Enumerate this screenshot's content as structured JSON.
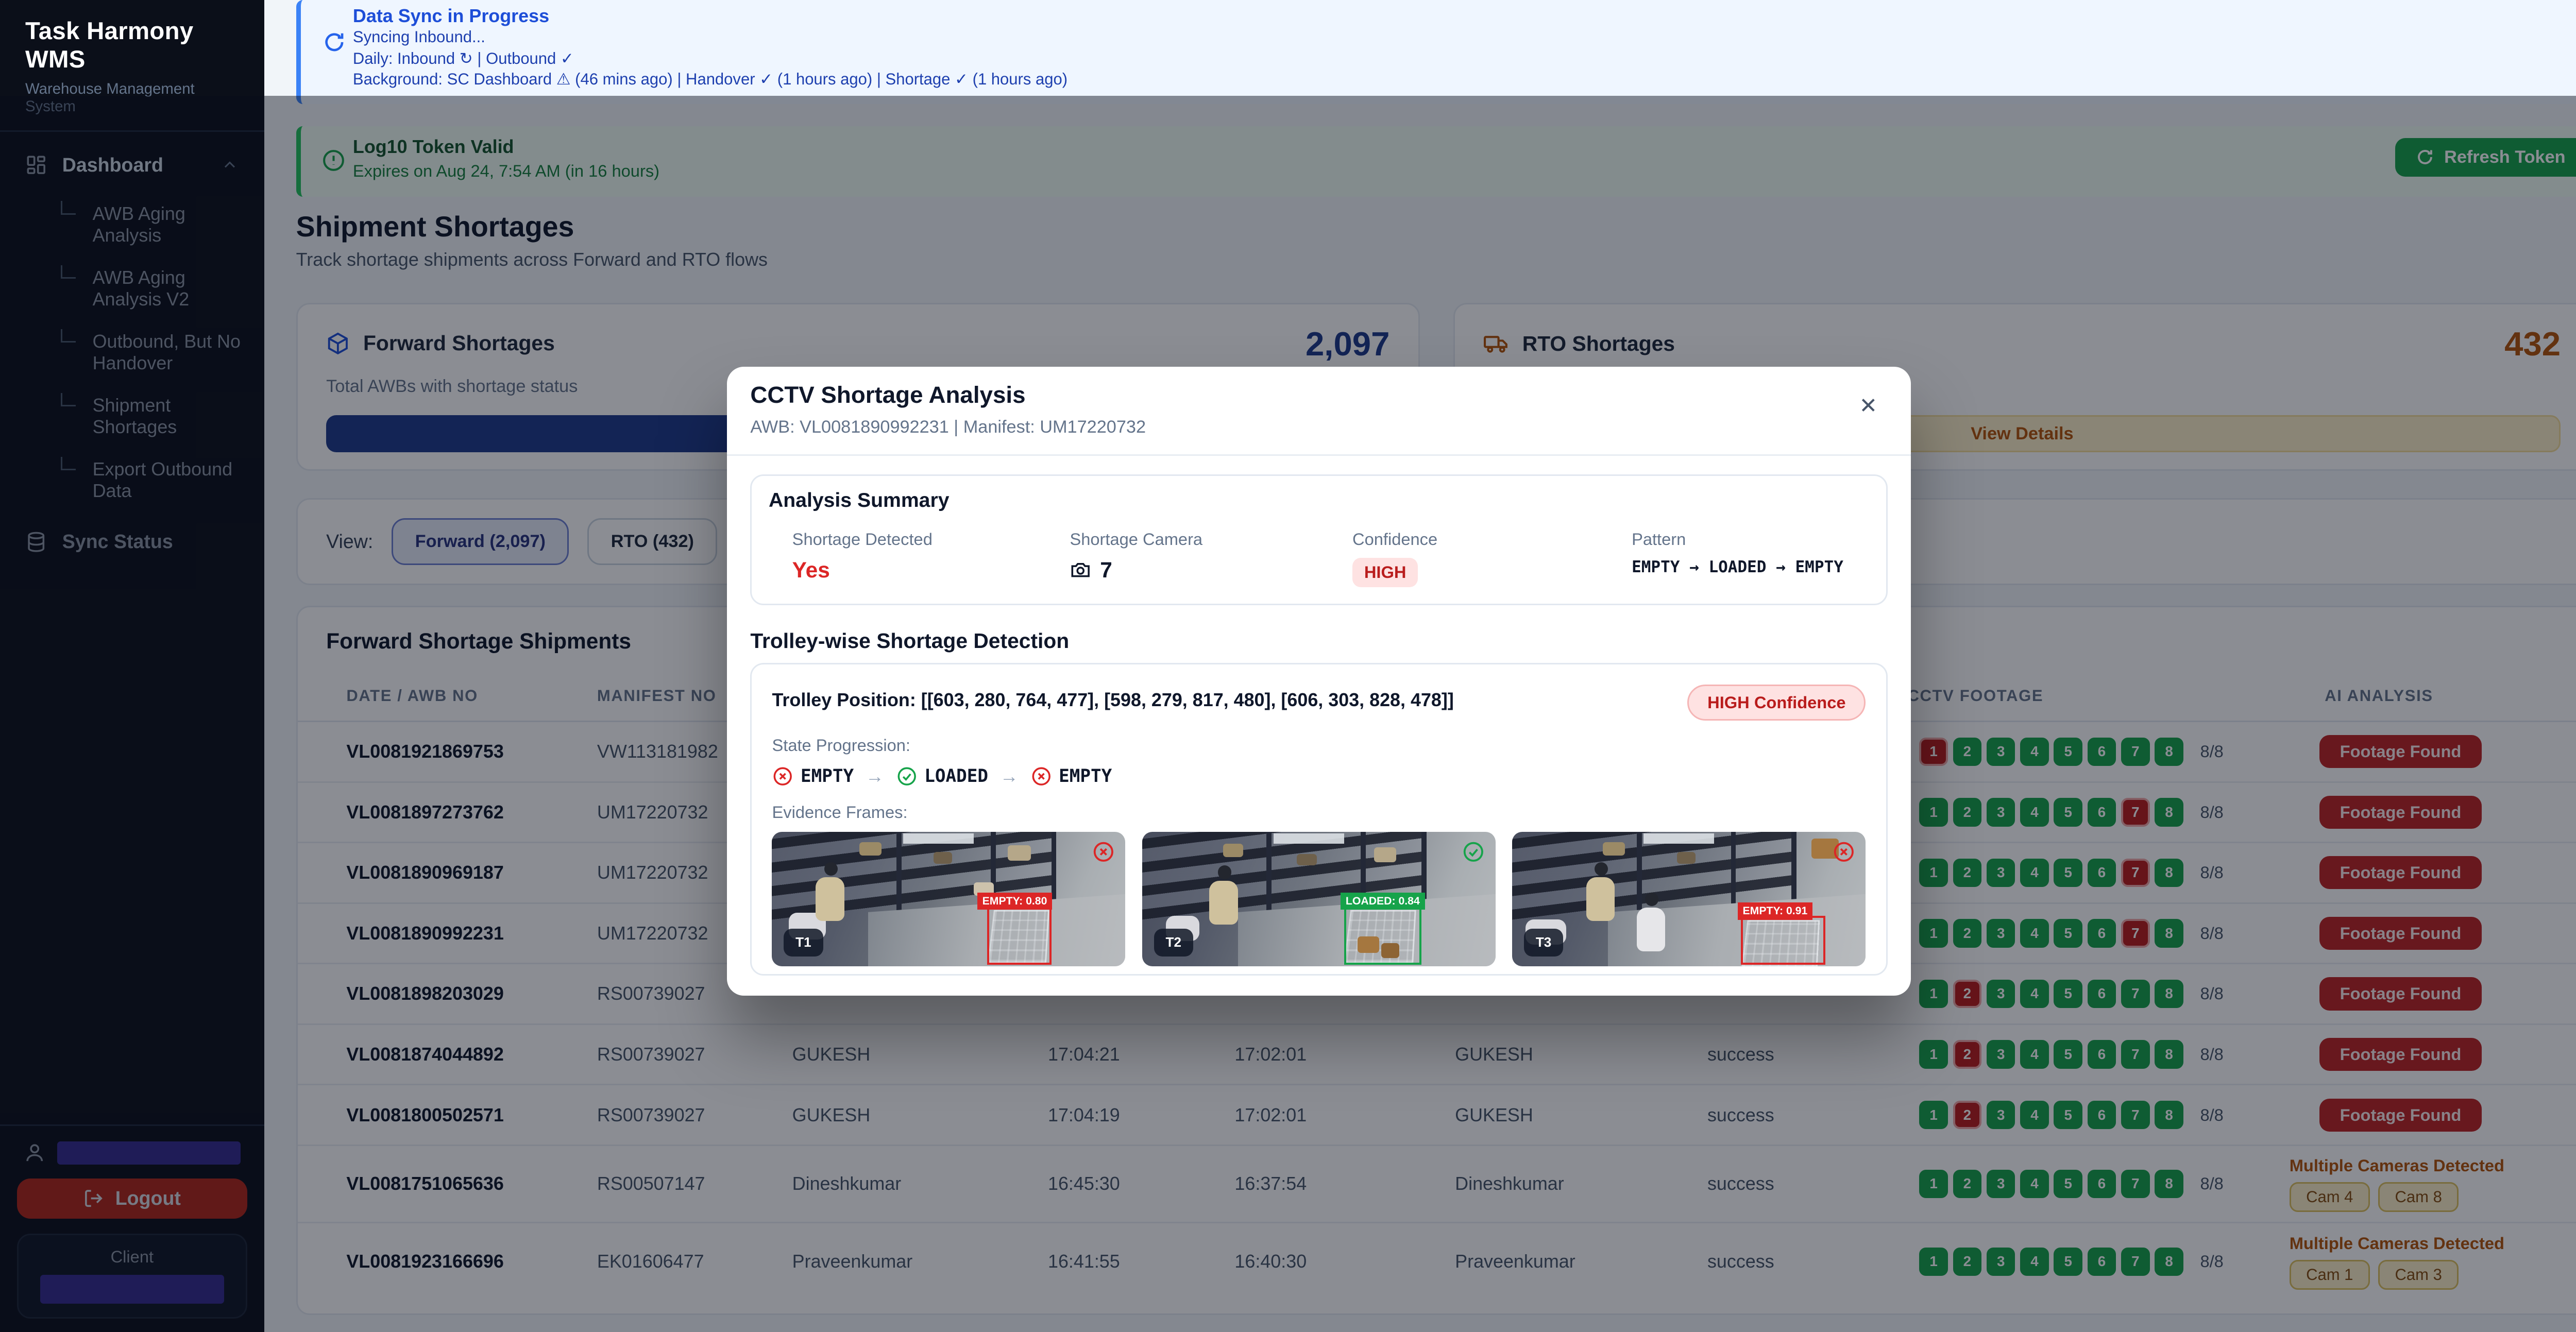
{
  "colors": {
    "accent_blue": "#1D4ED8",
    "green": "#16A34A",
    "red": "#DC2626",
    "amber": "#B45309",
    "indigo": "#1E3A8A"
  },
  "sidebar": {
    "title": "Task Harmony WMS",
    "subtitle": "Warehouse Management System",
    "dashboard_label": "Dashboard",
    "nav_items": [
      "AWB Aging Analysis",
      "AWB Aging Analysis V2",
      "Outbound, But No Handover",
      "Shipment Shortages",
      "Export Outbound Data"
    ],
    "sync_status_label": "Sync Status",
    "logout_label": "Logout",
    "client_label": "Client"
  },
  "sync_banner": {
    "title": "Data Sync in Progress",
    "line1": "Syncing Inbound...",
    "line2": "Daily: Inbound ↻ | Outbound ✓",
    "line3": "Background: SC Dashboard ⚠ (46 mins ago) | Handover ✓ (1 hours ago) | Shortage ✓ (1 hours ago)"
  },
  "token_banner": {
    "title": "Log10 Token Valid",
    "subtitle": "Expires on Aug 24, 7:54 AM (in 16 hours)",
    "button_label": "Refresh Token"
  },
  "page": {
    "title": "Shipment Shortages",
    "subtitle": "Track shortage shipments across Forward and RTO flows"
  },
  "cards": {
    "forward": {
      "label": "Forward Shortages",
      "value": "2,097",
      "subtitle": "Total AWBs with shortage status"
    },
    "rto": {
      "label": "RTO Shortages",
      "value": "432",
      "button_label": "View Details"
    }
  },
  "view_toggle": {
    "label": "View:",
    "forward": "Forward (2,097)",
    "rto": "RTO (432)"
  },
  "table": {
    "title": "Forward Shortage Shipments",
    "headers": [
      "DATE / AWB NO",
      "MANIFEST NO",
      "",
      "",
      "",
      "",
      "",
      "CCTV FOOTAGE",
      "AI ANALYSIS"
    ],
    "rows": [
      {
        "awb": "VL0081921869753",
        "manifest": "VW113181982",
        "name": "",
        "time1": "",
        "time2": "",
        "name2": "",
        "status": "",
        "red_cam": 1,
        "count": "8/8",
        "ai": {
          "type": "footage",
          "label": "Footage Found"
        },
        "tall": false
      },
      {
        "awb": "VL0081897273762",
        "manifest": "UM17220732",
        "name": "",
        "time1": "",
        "time2": "",
        "name2": "",
        "status": "",
        "red_cam": 7,
        "count": "8/8",
        "ai": {
          "type": "footage",
          "label": "Footage Found"
        },
        "tall": false
      },
      {
        "awb": "VL0081890969187",
        "manifest": "UM17220732",
        "name": "",
        "time1": "",
        "time2": "",
        "name2": "",
        "status": "",
        "red_cam": 7,
        "count": "8/8",
        "ai": {
          "type": "footage",
          "label": "Footage Found"
        },
        "tall": false
      },
      {
        "awb": "VL0081890992231",
        "manifest": "UM17220732",
        "name": "",
        "time1": "",
        "time2": "",
        "name2": "",
        "status": "",
        "red_cam": 7,
        "count": "8/8",
        "ai": {
          "type": "footage",
          "label": "Footage Found"
        },
        "tall": false
      },
      {
        "awb": "VL0081898203029",
        "manifest": "RS00739027",
        "name": "",
        "time1": "",
        "time2": "",
        "name2": "",
        "status": "",
        "red_cam": 2,
        "count": "8/8",
        "ai": {
          "type": "footage",
          "label": "Footage Found"
        },
        "tall": false
      },
      {
        "awb": "VL0081874044892",
        "manifest": "RS00739027",
        "name": "GUKESH",
        "time1": "17:04:21",
        "time2": "17:02:01",
        "name2": "GUKESH",
        "status": "success",
        "red_cam": 2,
        "count": "8/8",
        "ai": {
          "type": "footage",
          "label": "Footage Found"
        },
        "tall": false
      },
      {
        "awb": "VL0081800502571",
        "manifest": "RS00739027",
        "name": "GUKESH",
        "time1": "17:04:19",
        "time2": "17:02:01",
        "name2": "GUKESH",
        "status": "success",
        "red_cam": 2,
        "count": "8/8",
        "ai": {
          "type": "footage",
          "label": "Footage Found"
        },
        "tall": false
      },
      {
        "awb": "VL0081751065636",
        "manifest": "RS00507147",
        "name": "Dineshkumar",
        "time1": "16:45:30",
        "time2": "16:37:54",
        "name2": "Dineshkumar",
        "status": "success",
        "red_cam": 0,
        "count": "8/8",
        "ai": {
          "type": "multi",
          "label": "Multiple Cameras Detected",
          "cams": [
            "Cam 4",
            "Cam 8"
          ]
        },
        "tall": true
      },
      {
        "awb": "VL0081923166696",
        "manifest": "EK01606477",
        "name": "Praveenkumar",
        "time1": "16:41:55",
        "time2": "16:40:30",
        "name2": "Praveenkumar",
        "status": "success",
        "red_cam": 0,
        "count": "8/8",
        "ai": {
          "type": "multi",
          "label": "Multiple Cameras Detected",
          "cams": [
            "Cam 1",
            "Cam 3"
          ]
        },
        "tall": true
      }
    ]
  },
  "modal": {
    "title": "CCTV Shortage Analysis",
    "subtitle": "AWB: VL0081890992231 | Manifest: UM17220732",
    "close_label": "✕",
    "summary": {
      "title": "Analysis Summary",
      "fields": [
        {
          "label": "Shortage Detected",
          "value": "Yes"
        },
        {
          "label": "Shortage Camera",
          "value": "7"
        },
        {
          "label": "Confidence",
          "value": "HIGH"
        },
        {
          "label": "Pattern",
          "value": "EMPTY → LOADED → EMPTY"
        }
      ]
    },
    "section_title": "Trolley-wise Shortage Detection",
    "trolley": {
      "position_label": "Trolley Position: [[603, 280, 764, 477], [598, 279, 817, 480], [606, 303, 828, 478]]",
      "confidence_badge": "HIGH Confidence",
      "state_label": "State Progression:",
      "states": [
        {
          "text": "EMPTY",
          "ok": false
        },
        {
          "text": "LOADED",
          "ok": true
        },
        {
          "text": "EMPTY",
          "ok": false
        }
      ],
      "evidence_label": "Evidence Frames:",
      "frames": [
        {
          "id": "T1",
          "det": "EMPTY: 0.80",
          "ok": false
        },
        {
          "id": "T2",
          "det": "LOADED: 0.84",
          "ok": true
        },
        {
          "id": "T3",
          "det": "EMPTY: 0.91",
          "ok": false
        }
      ]
    }
  }
}
